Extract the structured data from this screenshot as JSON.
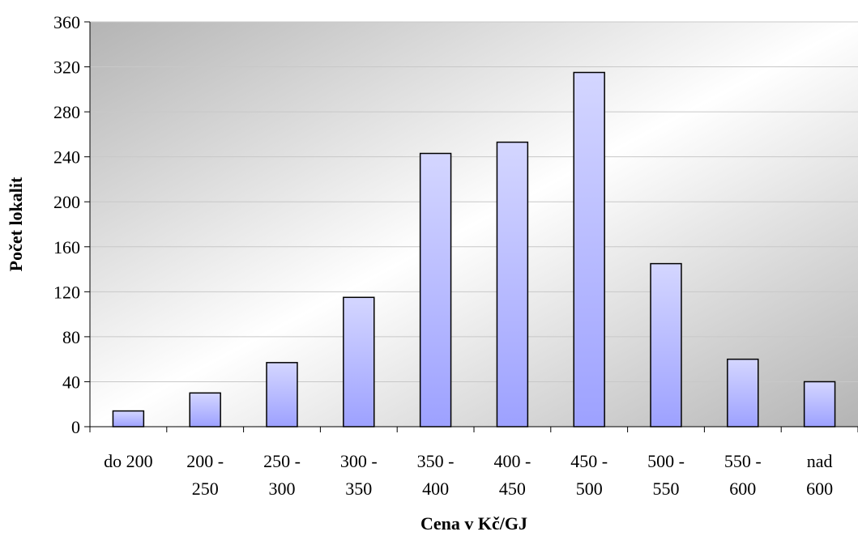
{
  "chart_data": {
    "type": "bar",
    "xlabel": "Cena v Kč/GJ",
    "ylabel": "Počet lokalit",
    "ylim": [
      0,
      360
    ],
    "y_ticks": [
      0,
      40,
      80,
      120,
      160,
      200,
      240,
      280,
      320,
      360
    ],
    "grid": true,
    "categories": [
      [
        "do 200"
      ],
      [
        "200 -",
        "250"
      ],
      [
        "250 -",
        "300"
      ],
      [
        "300 -",
        "350"
      ],
      [
        "350 -",
        "400"
      ],
      [
        "400 -",
        "450"
      ],
      [
        "450 -",
        "500"
      ],
      [
        "500 -",
        "550"
      ],
      [
        "550 -",
        "600"
      ],
      [
        "nad",
        "600"
      ]
    ],
    "values": [
      14,
      30,
      57,
      115,
      243,
      253,
      315,
      145,
      60,
      40
    ],
    "colors": {
      "bar_top": "#d4d6ff",
      "bar_bottom": "#9da1ff",
      "bar_stroke": "#000000",
      "plot_bg_dark": "#b4b4b4",
      "plot_bg_light": "#ffffff",
      "grid": "#c8c8c8"
    }
  }
}
